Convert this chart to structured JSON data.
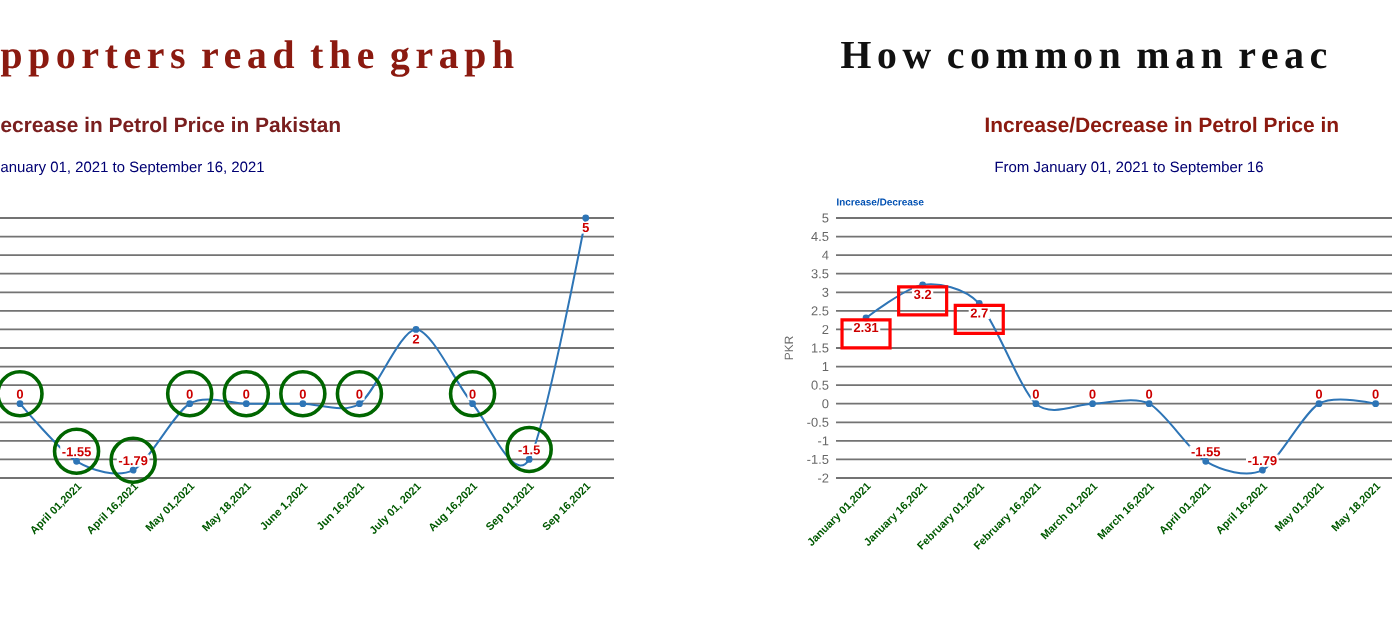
{
  "chart_data": [
    {
      "type": "line",
      "title": "pporters read the graph",
      "subtitle": "ecrease in Petrol Price in Pakistan",
      "annotations": [
        "anuary 01, 2021 to September 16, 2021"
      ],
      "categories": [
        null,
        "April 01,2021",
        "April 16,2021",
        "May 01,2021",
        "May 18,2021",
        "June 1,2021",
        "Jun 16,2021",
        "July 01, 2021",
        "Aug 16,2021",
        "Sep 01,2021",
        "Sep 16,2021"
      ],
      "series": [
        {
          "color": "#2e75b6",
          "values": [
            0,
            -1.55,
            -1.79,
            0,
            0,
            0,
            0,
            2,
            0,
            -1.5,
            5
          ],
          "value_labels": [
            "0",
            "-1.55",
            "-1.79",
            "0",
            "0",
            "0",
            "0",
            "2",
            "0",
            "-1.5",
            "5"
          ]
        }
      ],
      "ylim": [
        -2,
        5
      ],
      "yticks": [
        -2,
        -1.5,
        -1,
        -0.5,
        0,
        0.5,
        1,
        1.5,
        2,
        2.5,
        3,
        3.5,
        4,
        4.5,
        5
      ],
      "tick_labels": "x",
      "grid": "y",
      "marker": "circle"
    },
    {
      "type": "line",
      "title": "How common man reac",
      "subtitle": "Increase/Decrease in Petrol Price in",
      "annotations": [
        "From January 01, 2021 to September 16",
        "Increase/Decrease"
      ],
      "ylabel": "PKR",
      "categories": [
        "January 01,2021",
        "January 16,2021",
        "February 01,2021",
        "February 16,2021",
        "March 01,2021",
        "March 16,2021",
        "April 01,2021",
        "April 16,2021",
        "May 01,2021",
        "May 18,2021"
      ],
      "series": [
        {
          "color": "#2e75b6",
          "values": [
            2.31,
            3.2,
            2.7,
            0,
            0,
            0,
            -1.55,
            -1.79,
            0,
            0
          ],
          "value_labels": [
            "2.31",
            "3.2",
            "2.7",
            "0",
            "0",
            "0",
            "-1.55",
            "-1.79",
            "0",
            "0"
          ]
        }
      ],
      "ylim": [
        -2,
        5
      ],
      "yticks": [
        -2,
        -1.5,
        -1,
        -0.5,
        0,
        0.5,
        1,
        1.5,
        2,
        2.5,
        3,
        3.5,
        4,
        4.5,
        5
      ],
      "grid": "y",
      "marker": "circle"
    }
  ]
}
